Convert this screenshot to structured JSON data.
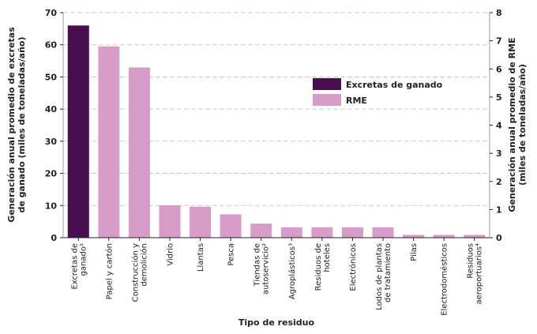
{
  "chart_data": {
    "type": "bar",
    "xlabel": "Tipo de residuo",
    "ylabel_left": "Generación anual promedio de excretas de ganado (miles de toneladas/año)",
    "ylabel_right": "Generación anual promedio de RME (miles de toneladas/año)",
    "ylim_left": [
      0,
      70
    ],
    "ylim_right": [
      0,
      8
    ],
    "yticks_left": [
      0,
      10,
      20,
      30,
      40,
      50,
      60,
      70
    ],
    "yticks_right": [
      0,
      1,
      2,
      3,
      4,
      5,
      6,
      7,
      8
    ],
    "grid": true,
    "legend_position": "center-right",
    "categories": [
      [
        "Excretas de",
        "ganado¹"
      ],
      [
        "Papel y cartón"
      ],
      [
        "Construcción y",
        "demolición"
      ],
      [
        "Vidrio"
      ],
      [
        "Llantas"
      ],
      [
        "Pesca"
      ],
      [
        "Tiendas de",
        "autoservicio²"
      ],
      [
        "Agroplásticos³"
      ],
      [
        "Residuos de",
        "hoteles"
      ],
      [
        "Electrónicos"
      ],
      [
        "Lodos de plantas",
        "de tratamiento"
      ],
      [
        "Pilas"
      ],
      [
        "Electrodomésticos"
      ],
      [
        "Residuos",
        "aeroportuarios⁴"
      ]
    ],
    "series": [
      {
        "name": "Excretas de ganado",
        "axis": "left",
        "color": "#4a0e4e",
        "values": [
          66,
          null,
          null,
          null,
          null,
          null,
          null,
          null,
          null,
          null,
          null,
          null,
          null,
          null
        ]
      },
      {
        "name": "RME",
        "axis": "right",
        "color": "#d89cc8",
        "values": [
          null,
          6.8,
          6.05,
          1.15,
          1.1,
          0.83,
          0.5,
          0.37,
          0.37,
          0.37,
          0.37,
          0.1,
          0.1,
          0.1
        ]
      }
    ]
  }
}
